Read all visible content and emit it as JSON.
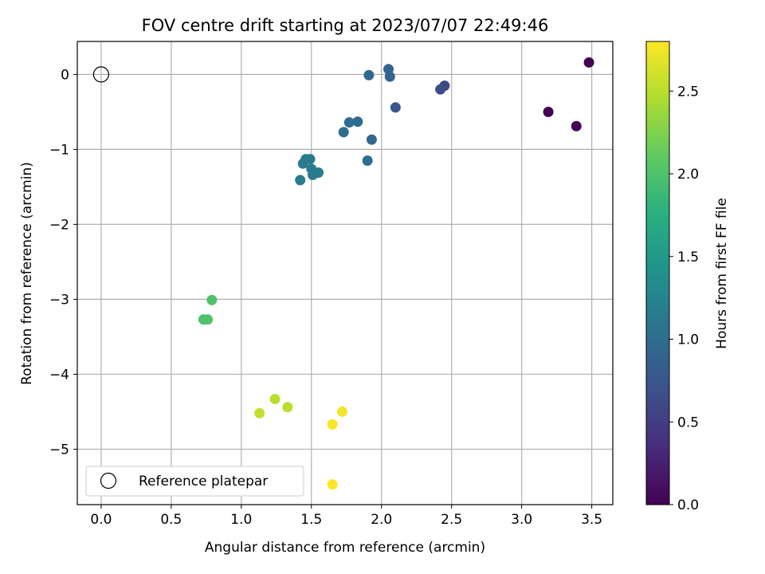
{
  "chart_data": {
    "type": "scatter",
    "title": "FOV centre drift starting at 2023/07/07 22:49:46",
    "xlabel": "Angular distance from reference (arcmin)",
    "ylabel": "Rotation from reference (arcmin)",
    "xlim": [
      -0.17,
      3.65
    ],
    "ylim": [
      -5.74,
      0.44
    ],
    "xticks": [
      "0.0",
      "0.5",
      "1.0",
      "1.5",
      "2.0",
      "2.5",
      "3.0",
      "3.5"
    ],
    "yticks": [
      "0",
      "−1",
      "−2",
      "−3",
      "−4",
      "−5"
    ],
    "grid": true,
    "legend": {
      "placement": "lower-left",
      "label": "Reference platepar"
    },
    "reference_point": {
      "x": 0.0,
      "y": 0.0
    },
    "colorbar": {
      "label": "Hours from first FF file",
      "range": [
        0.0,
        2.8
      ],
      "ticks": [
        "0.0",
        "0.5",
        "1.0",
        "1.5",
        "2.0",
        "2.5"
      ],
      "colormap": "viridis"
    },
    "points": [
      {
        "x": 3.48,
        "y": 0.16,
        "hours": 0.0
      },
      {
        "x": 3.19,
        "y": -0.5,
        "hours": 0.0
      },
      {
        "x": 3.39,
        "y": -0.69,
        "hours": 0.03
      },
      {
        "x": 2.45,
        "y": -0.15,
        "hours": 0.6
      },
      {
        "x": 2.42,
        "y": -0.2,
        "hours": 0.65
      },
      {
        "x": 2.1,
        "y": -0.44,
        "hours": 0.75
      },
      {
        "x": 2.05,
        "y": 0.07,
        "hours": 0.9
      },
      {
        "x": 2.06,
        "y": -0.03,
        "hours": 0.9
      },
      {
        "x": 1.91,
        "y": -0.01,
        "hours": 0.95
      },
      {
        "x": 1.93,
        "y": -0.87,
        "hours": 0.95
      },
      {
        "x": 1.83,
        "y": -0.63,
        "hours": 1.0
      },
      {
        "x": 1.77,
        "y": -0.64,
        "hours": 1.0
      },
      {
        "x": 1.73,
        "y": -0.77,
        "hours": 1.0
      },
      {
        "x": 1.9,
        "y": -1.15,
        "hours": 1.0
      },
      {
        "x": 1.49,
        "y": -1.13,
        "hours": 1.15
      },
      {
        "x": 1.46,
        "y": -1.13,
        "hours": 1.15
      },
      {
        "x": 1.44,
        "y": -1.19,
        "hours": 1.15
      },
      {
        "x": 1.5,
        "y": -1.26,
        "hours": 1.15
      },
      {
        "x": 1.55,
        "y": -1.31,
        "hours": 1.15
      },
      {
        "x": 1.51,
        "y": -1.34,
        "hours": 1.15
      },
      {
        "x": 1.42,
        "y": -1.41,
        "hours": 1.15
      },
      {
        "x": 0.79,
        "y": -3.01,
        "hours": 2.0
      },
      {
        "x": 0.73,
        "y": -3.27,
        "hours": 2.0
      },
      {
        "x": 0.76,
        "y": -3.27,
        "hours": 2.0
      },
      {
        "x": 1.24,
        "y": -4.33,
        "hours": 2.5
      },
      {
        "x": 1.33,
        "y": -4.44,
        "hours": 2.5
      },
      {
        "x": 1.13,
        "y": -4.52,
        "hours": 2.55
      },
      {
        "x": 1.72,
        "y": -4.5,
        "hours": 2.75
      },
      {
        "x": 1.65,
        "y": -4.67,
        "hours": 2.78
      },
      {
        "x": 1.65,
        "y": -5.47,
        "hours": 2.8
      }
    ]
  }
}
